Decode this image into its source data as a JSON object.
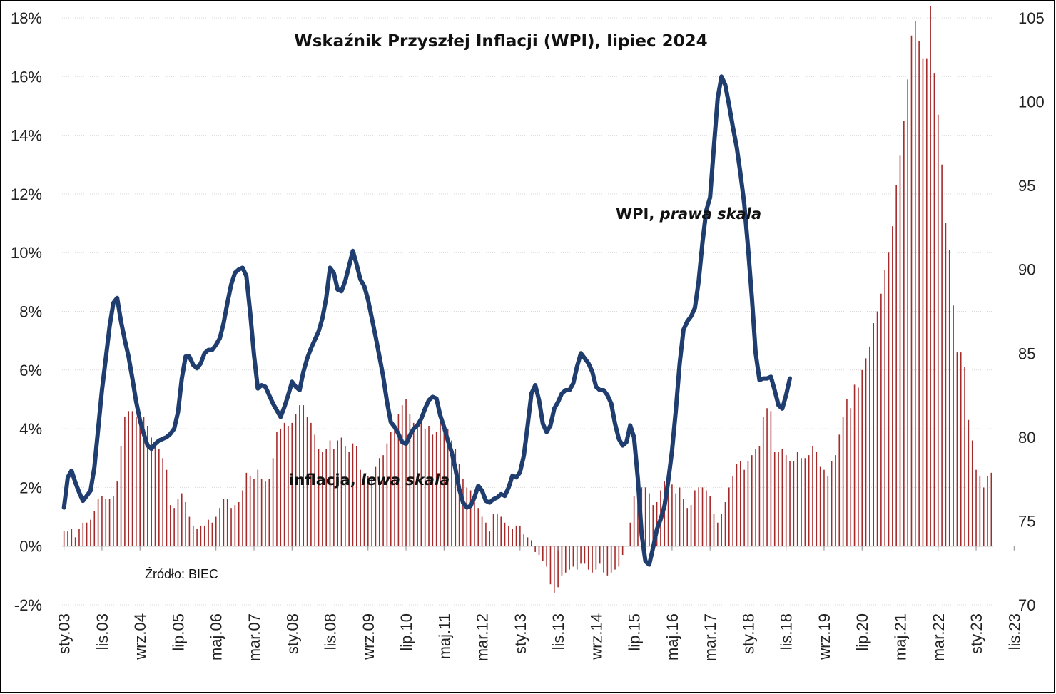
{
  "chart_data": {
    "type": "bar+line",
    "title": "Wskaźnik Przyszłej Inflacji (WPI), lipiec 2024",
    "source": "Źródło: BIEC",
    "left_axis": {
      "ticks": [
        "-2%",
        "0%",
        "2%",
        "4%",
        "6%",
        "8%",
        "10%",
        "12%",
        "14%",
        "16%",
        "18%"
      ],
      "ylim": [
        -2,
        18
      ]
    },
    "right_axis": {
      "ticks": [
        "70",
        "75",
        "80",
        "85",
        "90",
        "95",
        "100",
        "105"
      ],
      "ylim": [
        70,
        105
      ]
    },
    "x_tick_labels": [
      "sty.03",
      "lis.03",
      "wrz.04",
      "lip.05",
      "maj.06",
      "mar.07",
      "sty.08",
      "lis.08",
      "wrz.09",
      "lip.10",
      "maj.11",
      "mar.12",
      "sty.13",
      "lis.13",
      "wrz.14",
      "lip.15",
      "maj.16",
      "mar.17",
      "sty.18",
      "lis.18",
      "wrz.19",
      "lip.20",
      "maj.21",
      "mar.22",
      "sty.23",
      "lis.23"
    ],
    "series": [
      {
        "name": "inflacja",
        "label_plain": "inflacja, ",
        "label_italic": "lewa skala",
        "axis": "left",
        "kind": "bar",
        "color": "#a52a2a",
        "values": [
          0.5,
          0.5,
          0.6,
          0.3,
          0.6,
          0.8,
          0.8,
          0.9,
          1.2,
          1.6,
          1.7,
          1.6,
          1.6,
          1.7,
          2.2,
          3.4,
          4.4,
          4.6,
          4.6,
          4.4,
          4.5,
          4.4,
          4.1,
          3.7,
          3.5,
          3.3,
          3.0,
          2.6,
          1.4,
          1.3,
          1.6,
          1.8,
          1.5,
          1.0,
          0.7,
          0.6,
          0.7,
          0.7,
          0.9,
          0.8,
          1.0,
          1.3,
          1.6,
          1.6,
          1.3,
          1.4,
          1.5,
          1.9,
          2.5,
          2.4,
          2.3,
          2.6,
          2.3,
          2.2,
          2.3,
          3.0,
          3.9,
          4.0,
          4.2,
          4.1,
          4.2,
          4.5,
          4.8,
          4.8,
          4.4,
          4.2,
          3.8,
          3.3,
          3.2,
          3.3,
          3.6,
          3.3,
          3.6,
          3.7,
          3.4,
          3.2,
          3.5,
          3.4,
          2.6,
          2.2,
          2.4,
          2.3,
          2.7,
          3.0,
          3.1,
          3.5,
          3.9,
          4.0,
          4.5,
          4.8,
          5.0,
          4.5,
          4.2,
          4.1,
          4.3,
          4.0,
          4.1,
          3.8,
          3.9,
          4.3,
          4.1,
          4.0,
          3.6,
          3.3,
          2.8,
          2.3,
          2.0,
          1.9,
          1.7,
          1.3,
          1.0,
          0.8,
          0.5,
          1.1,
          1.1,
          1.0,
          0.8,
          0.7,
          0.6,
          0.7,
          0.7,
          0.4,
          0.3,
          0.2,
          -0.2,
          -0.3,
          -0.5,
          -0.7,
          -1.3,
          -1.6,
          -1.4,
          -1.0,
          -0.9,
          -0.8,
          -0.7,
          -0.8,
          -0.6,
          -0.6,
          -0.8,
          -0.9,
          -0.8,
          -0.6,
          -0.9,
          -1.0,
          -0.9,
          -0.8,
          -0.7,
          -0.3,
          0.0,
          0.8,
          1.7,
          2.2,
          2.0,
          2.0,
          1.8,
          1.4,
          1.5,
          1.9,
          2.2,
          2.5,
          2.1,
          1.8,
          2.0,
          1.6,
          1.3,
          1.4,
          1.9,
          2.0,
          2.0,
          1.9,
          1.7,
          1.1,
          0.8,
          1.1,
          1.5,
          2.0,
          2.4,
          2.8,
          2.9,
          2.6,
          2.9,
          3.1,
          3.3,
          3.4,
          4.4,
          4.7,
          4.6,
          3.2,
          3.2,
          3.3,
          3.1,
          2.9,
          2.9,
          3.2,
          3.0,
          3.0,
          3.1,
          3.4,
          3.2,
          2.7,
          2.6,
          2.4,
          2.9,
          3.1,
          3.8,
          4.4,
          5.0,
          4.7,
          5.5,
          5.4,
          6.0,
          6.4,
          6.8,
          7.6,
          8.0,
          8.6,
          9.4,
          10.0,
          10.9,
          12.3,
          13.3,
          14.5,
          15.9,
          17.4,
          17.9,
          17.2,
          16.6,
          16.6,
          18.4,
          16.1,
          14.7,
          13.0,
          11.0,
          10.1,
          8.2,
          6.6,
          6.6,
          6.1,
          4.3,
          3.6,
          2.6,
          2.4,
          2.0,
          2.4,
          2.5
        ]
      },
      {
        "name": "WPI",
        "label_plain": "WPI, ",
        "label_italic": "prawa skala",
        "axis": "right",
        "kind": "line",
        "color": "#1f3d6e",
        "values": [
          75.8,
          77.6,
          78.0,
          77.3,
          76.7,
          76.2,
          76.5,
          76.8,
          78.2,
          80.5,
          82.8,
          84.7,
          86.6,
          88.0,
          88.3,
          86.9,
          85.8,
          84.8,
          83.5,
          82.1,
          81.0,
          80.2,
          79.5,
          79.3,
          79.6,
          79.8,
          79.9,
          80.0,
          80.2,
          80.5,
          81.5,
          83.5,
          84.8,
          84.8,
          84.3,
          84.1,
          84.4,
          85.0,
          85.2,
          85.2,
          85.5,
          85.9,
          86.8,
          88.0,
          89.1,
          89.8,
          90.0,
          90.1,
          89.6,
          87.4,
          84.9,
          82.9,
          83.1,
          83.0,
          82.5,
          82.0,
          81.6,
          81.2,
          81.8,
          82.5,
          83.3,
          83.0,
          82.8,
          83.9,
          84.7,
          85.3,
          85.8,
          86.3,
          87.1,
          88.3,
          90.1,
          89.8,
          88.8,
          88.7,
          89.3,
          90.2,
          91.1,
          90.3,
          89.4,
          89.0,
          88.2,
          87.1,
          86.0,
          84.8,
          83.6,
          82.1,
          80.9,
          80.6,
          80.2,
          79.7,
          79.6,
          80.1,
          80.5,
          80.7,
          81.1,
          81.7,
          82.2,
          82.4,
          82.3,
          81.3,
          80.6,
          79.8,
          79.1,
          78.1,
          76.9,
          76.1,
          75.8,
          75.9,
          76.4,
          77.1,
          76.8,
          76.2,
          76.1,
          76.3,
          76.4,
          76.6,
          76.5,
          77.0,
          77.7,
          77.6,
          77.9,
          78.9,
          80.7,
          82.6,
          83.1,
          82.2,
          80.8,
          80.3,
          80.7,
          81.7,
          82.1,
          82.6,
          82.8,
          82.8,
          83.2,
          84.2,
          85.0,
          84.7,
          84.4,
          83.9,
          83.0,
          82.8,
          82.8,
          82.5,
          82.0,
          80.8,
          79.9,
          79.5,
          79.7,
          80.7,
          80.0,
          77.5,
          74.2,
          72.6,
          72.4,
          73.4,
          74.5,
          75.1,
          75.9,
          77.4,
          79.2,
          81.6,
          84.4,
          86.4,
          86.9,
          87.2,
          87.7,
          89.3,
          91.6,
          93.5,
          94.3,
          97.3,
          100.2,
          101.5,
          101.0,
          99.8,
          98.5,
          97.3,
          95.7,
          93.9,
          91.3,
          88.3,
          85.0,
          83.4,
          83.5,
          83.5,
          83.6,
          82.8,
          81.9,
          81.7,
          82.5,
          83.5
        ]
      }
    ]
  }
}
